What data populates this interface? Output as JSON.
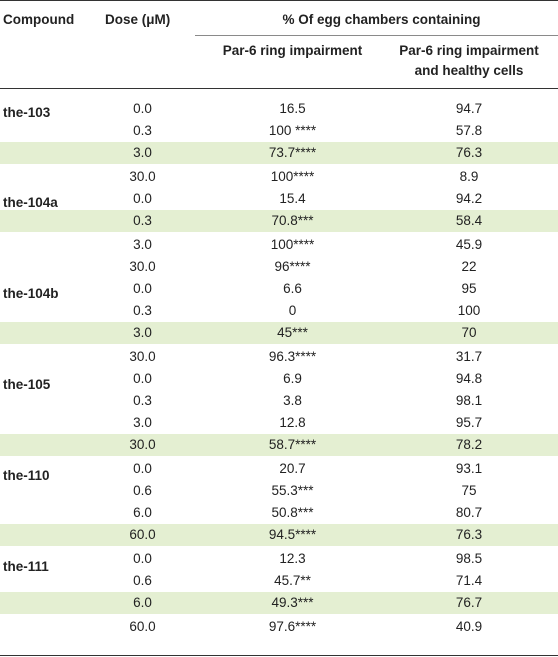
{
  "headers": {
    "compound": "Compound",
    "dose": "Dose (μM)",
    "group": "% Of egg chambers containing",
    "par6": "Par-6 ring impairment",
    "healthy_line1": "Par-6 ring impairment",
    "healthy_line2": "and healthy cells"
  },
  "highlight_color": "#e4efd2",
  "rows": [
    {
      "dose": "0.0",
      "par6": "16.5",
      "healthy": "94.7",
      "highlight": false
    },
    {
      "dose": "0.3",
      "par6": "100 ****",
      "healthy": "57.8",
      "highlight": false
    },
    {
      "dose": "3.0",
      "par6": "73.7****",
      "healthy": "76.3",
      "highlight": true
    },
    {
      "dose": "30.0",
      "par6": "100****",
      "healthy": "8.9",
      "highlight": false
    },
    {
      "dose": "0.0",
      "par6": "15.4",
      "healthy": "94.2",
      "highlight": false
    },
    {
      "dose": "0.3",
      "par6": "70.8***",
      "healthy": "58.4",
      "highlight": true
    },
    {
      "dose": "3.0",
      "par6": "100****",
      "healthy": "45.9",
      "highlight": false
    },
    {
      "dose": "30.0",
      "par6": "96****",
      "healthy": "22",
      "highlight": false
    },
    {
      "dose": "0.0",
      "par6": "6.6",
      "healthy": "95",
      "highlight": false
    },
    {
      "dose": "0.3",
      "par6": "0",
      "healthy": "100",
      "highlight": false
    },
    {
      "dose": "3.0",
      "par6": "45***",
      "healthy": "70",
      "highlight": true
    },
    {
      "dose": "30.0",
      "par6": "96.3****",
      "healthy": "31.7",
      "highlight": false
    },
    {
      "dose": "0.0",
      "par6": "6.9",
      "healthy": "94.8",
      "highlight": false
    },
    {
      "dose": "0.3",
      "par6": "3.8",
      "healthy": "98.1",
      "highlight": false
    },
    {
      "dose": "3.0",
      "par6": "12.8",
      "healthy": "95.7",
      "highlight": false
    },
    {
      "dose": "30.0",
      "par6": "58.7****",
      "healthy": "78.2",
      "highlight": true
    },
    {
      "dose": "0.0",
      "par6": "20.7",
      "healthy": "93.1",
      "highlight": false
    },
    {
      "dose": "0.6",
      "par6": "55.3***",
      "healthy": "75",
      "highlight": false
    },
    {
      "dose": "6.0",
      "par6": "50.8***",
      "healthy": "80.7",
      "highlight": false
    },
    {
      "dose": "60.0",
      "par6": "94.5****",
      "healthy": "76.3",
      "highlight": true
    },
    {
      "dose": "0.0",
      "par6": "12.3",
      "healthy": "98.5",
      "highlight": false
    },
    {
      "dose": "0.6",
      "par6": "45.7**",
      "healthy": "71.4",
      "highlight": false
    },
    {
      "dose": "6.0",
      "par6": "49.3***",
      "healthy": "76.7",
      "highlight": true
    },
    {
      "dose": "60.0",
      "par6": "97.6****",
      "healthy": "40.9",
      "highlight": false
    }
  ],
  "compounds": [
    "the-103",
    "the-104a",
    "the-104b",
    "the-105",
    "the-110",
    "the-111"
  ]
}
